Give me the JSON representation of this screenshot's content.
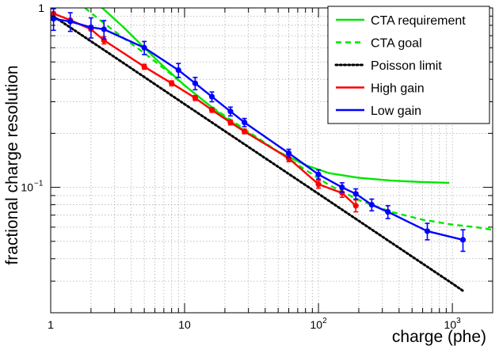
{
  "chart_data": {
    "type": "line",
    "title": "",
    "xlabel": "charge (phe)",
    "ylabel": "fractional charge resolution",
    "xscale": "log",
    "yscale": "log",
    "xlim": [
      1,
      2000
    ],
    "ylim": [
      0.02,
      1
    ],
    "grid": true,
    "legend_position": "top-right",
    "x_tick_labels": [
      {
        "value": 1,
        "label": "1"
      },
      {
        "value": 10,
        "label": "10"
      },
      {
        "value": 100,
        "label": "10",
        "exponent": "2"
      },
      {
        "value": 1000,
        "label": "10",
        "exponent": "3"
      }
    ],
    "y_tick_labels": [
      {
        "value": 1,
        "label": "1"
      },
      {
        "value": 0.1,
        "label": "10",
        "exponent": "−1"
      }
    ],
    "series": [
      {
        "name": "CTA requirement",
        "color": "#00e600",
        "style": "solid",
        "markers": false,
        "x": [
          1.8,
          2.5,
          3.5,
          5,
          7,
          10,
          15,
          20,
          30,
          50,
          80,
          120,
          200,
          350,
          600,
          950
        ],
        "y": [
          1.2,
          0.98,
          0.78,
          0.6,
          0.47,
          0.37,
          0.29,
          0.245,
          0.2,
          0.158,
          0.133,
          0.12,
          0.113,
          0.109,
          0.107,
          0.106
        ]
      },
      {
        "name": "CTA goal",
        "color": "#00e600",
        "style": "dashed",
        "markers": false,
        "x": [
          1.8,
          2.5,
          3.5,
          5,
          7,
          10,
          15,
          20,
          30,
          50,
          80,
          120,
          200,
          350,
          600,
          1000,
          1500,
          2000
        ],
        "y": [
          1.0,
          0.82,
          0.68,
          0.56,
          0.46,
          0.37,
          0.29,
          0.25,
          0.204,
          0.158,
          0.125,
          0.103,
          0.085,
          0.073,
          0.066,
          0.062,
          0.06,
          0.058
        ]
      },
      {
        "name": "Poisson limit",
        "color": "#000000",
        "style": "dotted",
        "markers": false,
        "x": [
          1,
          3,
          10,
          30,
          100,
          300,
          1000,
          1200
        ],
        "y": [
          0.92,
          0.532,
          0.291,
          0.168,
          0.092,
          0.0531,
          0.0291,
          0.0265
        ]
      },
      {
        "name": "High gain",
        "color": "#ff0000",
        "style": "solid",
        "markers": true,
        "x": [
          1.05,
          1.4,
          2.0,
          2.5,
          5.0,
          8.0,
          12.0,
          16.0,
          22.0,
          28.0,
          60.0,
          100.0,
          150.0,
          190.0
        ],
        "y": [
          0.93,
          0.855,
          0.76,
          0.66,
          0.47,
          0.38,
          0.315,
          0.27,
          0.23,
          0.205,
          0.145,
          0.104,
          0.093,
          0.079
        ],
        "err": [
          0.0,
          0.0,
          0.0,
          0.03,
          0.015,
          0.012,
          0.01,
          0.008,
          0.007,
          0.006,
          0.006,
          0.005,
          0.005,
          0.006
        ]
      },
      {
        "name": "Low gain",
        "color": "#0000ff",
        "style": "solid",
        "markers": true,
        "x": [
          1.05,
          1.4,
          2.0,
          2.5,
          5.0,
          9.0,
          12.0,
          16.0,
          22.0,
          28.0,
          60.0,
          100.0,
          150.0,
          190.0,
          250.0,
          330.0,
          650.0,
          1200.0
        ],
        "y": [
          0.87,
          0.84,
          0.78,
          0.76,
          0.6,
          0.45,
          0.38,
          0.32,
          0.265,
          0.23,
          0.155,
          0.118,
          0.1,
          0.092,
          0.08,
          0.073,
          0.057,
          0.051
        ],
        "err": [
          0.12,
          0.1,
          0.1,
          0.09,
          0.05,
          0.04,
          0.03,
          0.02,
          0.015,
          0.012,
          0.008,
          0.007,
          0.006,
          0.006,
          0.006,
          0.006,
          0.006,
          0.007
        ]
      }
    ]
  }
}
